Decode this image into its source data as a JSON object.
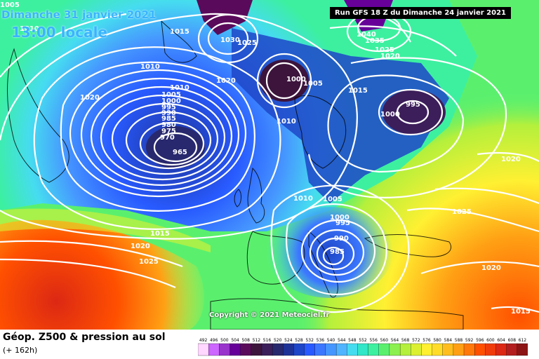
{
  "header": {
    "date": "Dimanche 31 janvier 2021",
    "time": "13:00 locale",
    "run": "Run GFS 18 Z du Dimanche 24 janvier 2021"
  },
  "copyright": "Copyright © 2021 Meteociel.fr",
  "footer": {
    "title": "Géop. Z500 & pression au sol",
    "subtitle": "(+ 162h)"
  },
  "pressure_labels": [
    "1005",
    "1010",
    "1015",
    "1030",
    "1025",
    "1040",
    "1035",
    "1025",
    "1020",
    "1000",
    "1005",
    "1020",
    "1010",
    "1010",
    "1020",
    "1005",
    "1000",
    "995",
    "990",
    "985",
    "980",
    "975",
    "970",
    "965",
    "1000",
    "995",
    "1015",
    "1010",
    "1020",
    "1010",
    "1005",
    "1000",
    "995",
    "990",
    "985",
    "1025",
    "1015",
    "1020",
    "1025",
    "1020",
    "1015"
  ],
  "scale": {
    "labels": [
      "492",
      "496",
      "500",
      "504",
      "508",
      "512",
      "516",
      "520",
      "524",
      "528",
      "532",
      "536",
      "540",
      "544",
      "548",
      "552",
      "556",
      "560",
      "564",
      "568",
      "572",
      "576",
      "580",
      "584",
      "588",
      "592",
      "596",
      "600",
      "604",
      "608",
      "612"
    ],
    "colors": [
      "#ffd7ff",
      "#cc66ff",
      "#9933cc",
      "#660099",
      "#5a0a5a",
      "#3c143c",
      "#3c1e5a",
      "#28286e",
      "#1e3296",
      "#1e46c8",
      "#285aff",
      "#3c78ff",
      "#4696ff",
      "#50b4ff",
      "#46dcf0",
      "#32e6c8",
      "#3cf0a0",
      "#5af06e",
      "#8cf050",
      "#b4f03c",
      "#dcf032",
      "#fff032",
      "#ffdc28",
      "#ffbe1e",
      "#ffa014",
      "#ff780a",
      "#ff5000",
      "#f03c0a",
      "#dc2814",
      "#b41e1e",
      "#8c1414"
    ]
  }
}
